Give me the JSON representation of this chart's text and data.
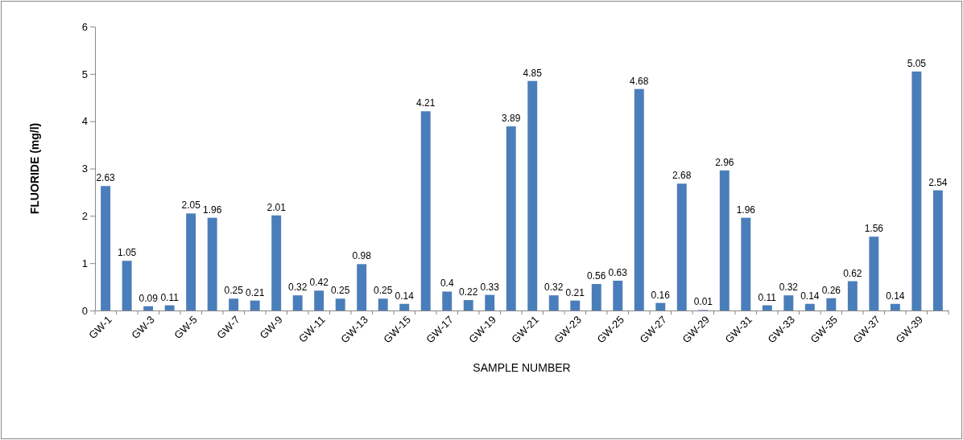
{
  "chart_data": {
    "type": "bar",
    "xlabel": "SAMPLE NUMBER",
    "ylabel": "FLUORIDE (mg/l)",
    "categories": [
      "GW-1",
      null,
      "GW-3",
      null,
      "GW-5",
      null,
      "GW-7",
      null,
      "GW-9",
      null,
      "GW-11",
      null,
      "GW-13",
      null,
      "GW-15",
      null,
      "GW-17",
      null,
      "GW-19",
      null,
      "GW-21",
      null,
      "GW-23",
      null,
      "GW-25",
      null,
      "GW-27",
      null,
      "GW-29",
      null,
      "GW-31",
      null,
      "GW-33",
      null,
      "GW-35",
      null,
      "GW-37",
      null,
      "GW-39",
      null
    ],
    "values": [
      2.63,
      1.05,
      0.09,
      0.11,
      2.05,
      1.96,
      0.25,
      0.21,
      2.01,
      0.32,
      0.42,
      0.25,
      0.98,
      0.25,
      0.14,
      4.21,
      0.4,
      0.22,
      0.33,
      3.89,
      4.85,
      0.32,
      0.21,
      0.56,
      0.63,
      4.68,
      0.16,
      2.68,
      0.01,
      2.96,
      1.96,
      0.11,
      0.32,
      0.14,
      0.26,
      0.62,
      1.56,
      0.14,
      5.05,
      2.54
    ],
    "color": "#4a7ebb",
    "ylim": [
      0,
      6
    ],
    "yticks": [
      0,
      1,
      2,
      3,
      4,
      5,
      6
    ],
    "data_labels": true,
    "grid": false
  }
}
